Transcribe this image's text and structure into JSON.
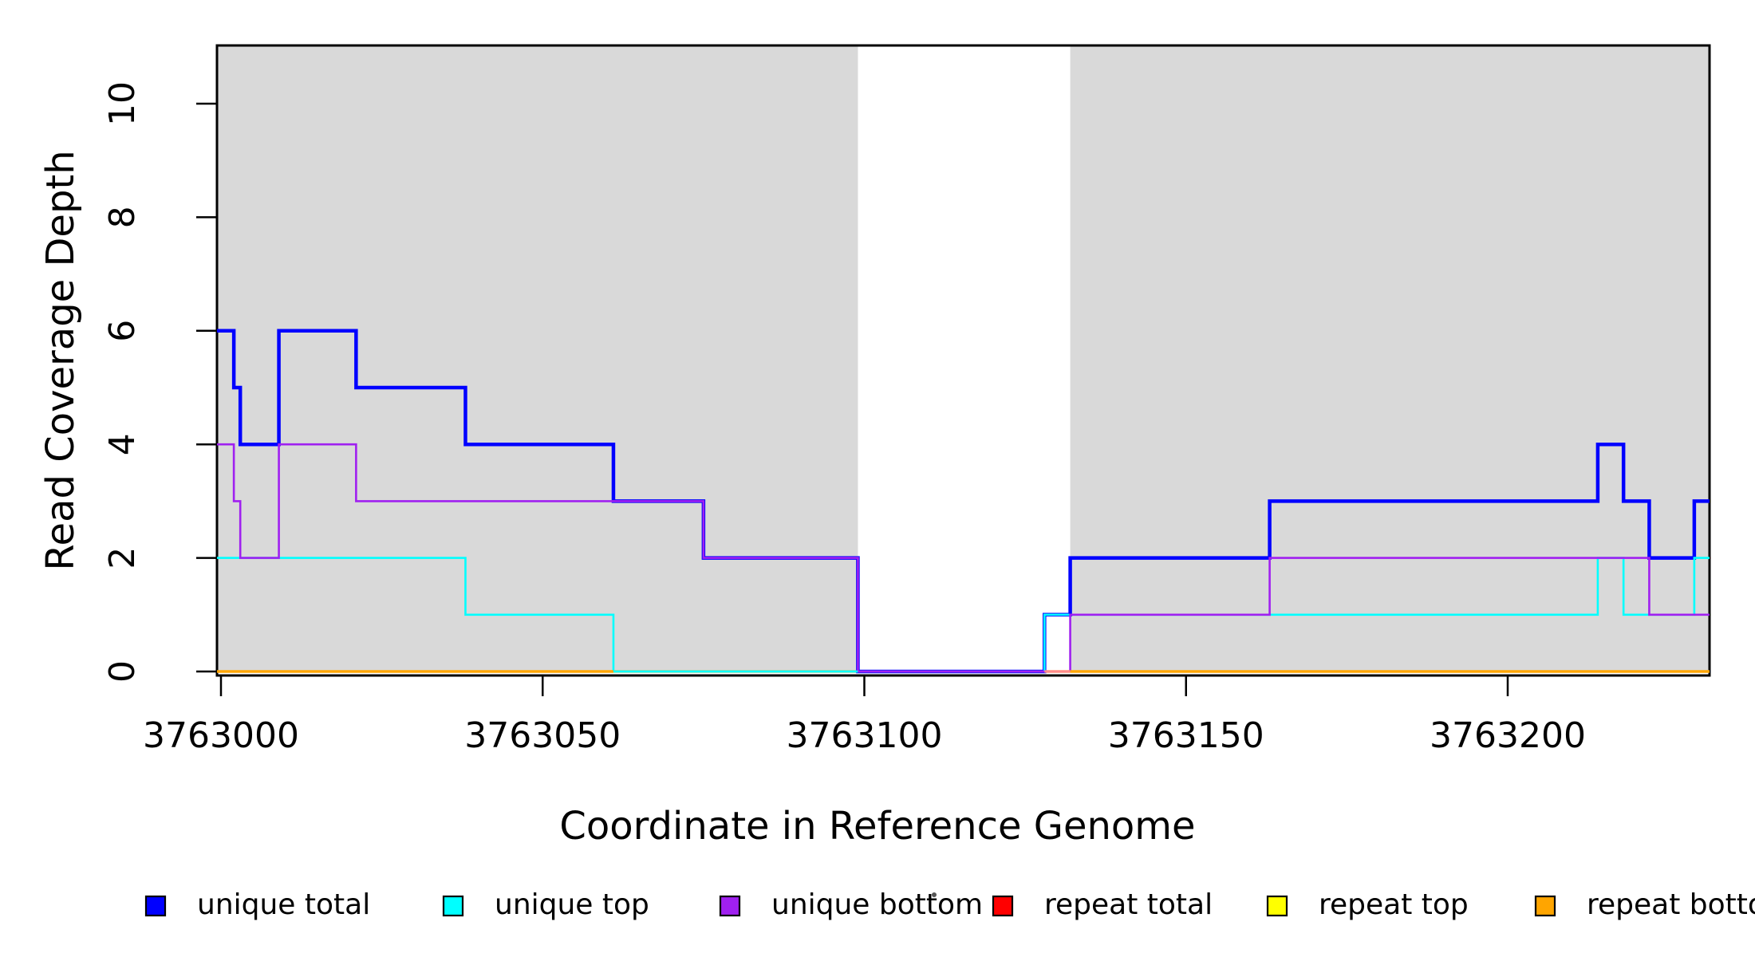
{
  "chart_data": {
    "type": "line",
    "subtype": "step-coverage-plot",
    "title": "",
    "xlabel": "Coordinate in Reference Genome",
    "ylabel": "Read Coverage Depth",
    "x_domain": [
      3762999,
      3763231.5
    ],
    "ylim": [
      0,
      11.02
    ],
    "grid": false,
    "legend_position": "bottom",
    "x_ticks": [
      3763000,
      3763050,
      3763100,
      3763150,
      3763200
    ],
    "x_tick_labels": [
      "3763000",
      "3763050",
      "3763100",
      "3763150",
      "3763200"
    ],
    "y_ticks": [
      0,
      2,
      4,
      6,
      8,
      10
    ],
    "y_tick_labels": [
      "0",
      "2",
      "4",
      "6",
      "8",
      "10"
    ],
    "shade_color": "#d9d9d9",
    "frame_color": "#000000",
    "shaded_regions": [
      {
        "x0": 3762999,
        "x1": 3763099
      },
      {
        "x0": 3763132,
        "x1": 3763231.5
      }
    ],
    "series": [
      {
        "name": "repeat total",
        "color": "#ff0000",
        "width": 2.6,
        "steps": [
          [
            3762999,
            0
          ]
        ],
        "x_end": 3763231.5
      },
      {
        "name": "repeat top",
        "color": "#ffff00",
        "width": 2.6,
        "steps": [
          [
            3762999,
            0
          ]
        ],
        "x_end": 3763231.5
      },
      {
        "name": "repeat bottom",
        "color": "#ffa500",
        "width": 3.2,
        "steps": [
          [
            3762999,
            0
          ]
        ],
        "x_end": 3763231.5
      },
      {
        "name": "unique total",
        "color": "#0000ff",
        "width": 4.5,
        "steps": [
          [
            3762999,
            6
          ],
          [
            3763002,
            5
          ],
          [
            3763003,
            4
          ],
          [
            3763009,
            6
          ],
          [
            3763021,
            5
          ],
          [
            3763038,
            4
          ],
          [
            3763061,
            3
          ],
          [
            3763075,
            2
          ],
          [
            3763099,
            0
          ],
          [
            3763128,
            1
          ],
          [
            3763132,
            2
          ],
          [
            3763163,
            3
          ],
          [
            3763214,
            4
          ],
          [
            3763218,
            3
          ],
          [
            3763222,
            2
          ],
          [
            3763229,
            3
          ]
        ],
        "x_end": 3763231.5
      },
      {
        "name": "unique top",
        "color": "#00ffff",
        "width": 2.6,
        "steps": [
          [
            3762999,
            2
          ],
          [
            3763038,
            1
          ],
          [
            3763061,
            0
          ],
          [
            3763128,
            1
          ],
          [
            3763214,
            2
          ],
          [
            3763218,
            1
          ],
          [
            3763229,
            2
          ]
        ],
        "x_end": 3763231.5
      },
      {
        "name": "unique bottom",
        "color": "#a020f0",
        "width": 2.6,
        "steps": [
          [
            3762999,
            4
          ],
          [
            3763002,
            3
          ],
          [
            3763003,
            2
          ],
          [
            3763009,
            4
          ],
          [
            3763021,
            3
          ],
          [
            3763075,
            2
          ],
          [
            3763099,
            0
          ],
          [
            3763132,
            1
          ],
          [
            3763163,
            2
          ],
          [
            3763222,
            1
          ]
        ],
        "x_end": 3763231.5
      }
    ],
    "baseline_segments": [
      {
        "x0": 3762999,
        "x1": 3763061,
        "color": "#ffa500",
        "series": "repeat bottom",
        "width": 3.2
      },
      {
        "x0": 3763061,
        "x1": 3763099,
        "color": "#00ffff",
        "series": "unique top",
        "width": 2.6
      },
      {
        "x0": 3763099,
        "x1": 3763128,
        "color": "#a020f0",
        "series": "unique bottom",
        "width": 2.6
      },
      {
        "x0": 3763128,
        "x1": 3763132,
        "color": "#ff8a8a",
        "series": "repeat total",
        "width": 3.2
      },
      {
        "x0": 3763132,
        "x1": 3763231.5,
        "color": "#ffa500",
        "series": "repeat bottom",
        "width": 3.2
      }
    ]
  },
  "legend": {
    "items": [
      {
        "label": "unique total",
        "color": "#0000ff"
      },
      {
        "label": "unique top",
        "color": "#00ffff"
      },
      {
        "label": "unique bottom",
        "color": "#a020f0"
      },
      {
        "label": "repeat total",
        "color": "#ff0000"
      },
      {
        "label": "repeat top",
        "color": "#ffff00"
      },
      {
        "label": "repeat bottom",
        "color": "#ffa500"
      }
    ]
  }
}
